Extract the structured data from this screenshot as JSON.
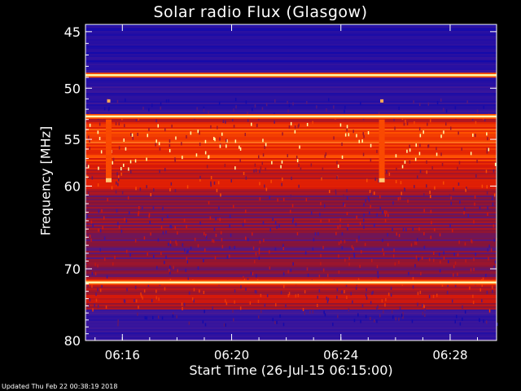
{
  "title": "Solar radio Flux (Glasgow)",
  "updated_text": "Updated Thu Feb 22 00:38:19 2018",
  "chart_data": {
    "type": "heatmap",
    "title": "Solar radio Flux (Glasgow)",
    "xlabel": "Start Time (26-Jul-15 06:15:00)",
    "ylabel": "Frequency [MHz]",
    "x_ticks": [
      "06:16",
      "06:20",
      "06:24",
      "06:28"
    ],
    "x_tick_minutes": [
      1,
      5,
      9,
      13
    ],
    "xlim_minutes": [
      -0.35,
      14.7
    ],
    "y_ticks": [
      45,
      50,
      55,
      60,
      70,
      80
    ],
    "ylim": [
      44.4,
      80
    ],
    "y_scale": "log",
    "bright_bands_mhz": [
      48.8,
      52.7,
      71.8
    ],
    "bursts": [
      {
        "time_minutes": 0.5,
        "freq_range_mhz": [
          53,
          59.4
        ]
      },
      {
        "time_minutes": 10.5,
        "freq_range_mhz": [
          53,
          59.4
        ]
      }
    ],
    "colors": {
      "low": "#1a0dbf",
      "mid": "#7a1030",
      "high": "#ff2400",
      "peak": "#ffffaa"
    }
  }
}
